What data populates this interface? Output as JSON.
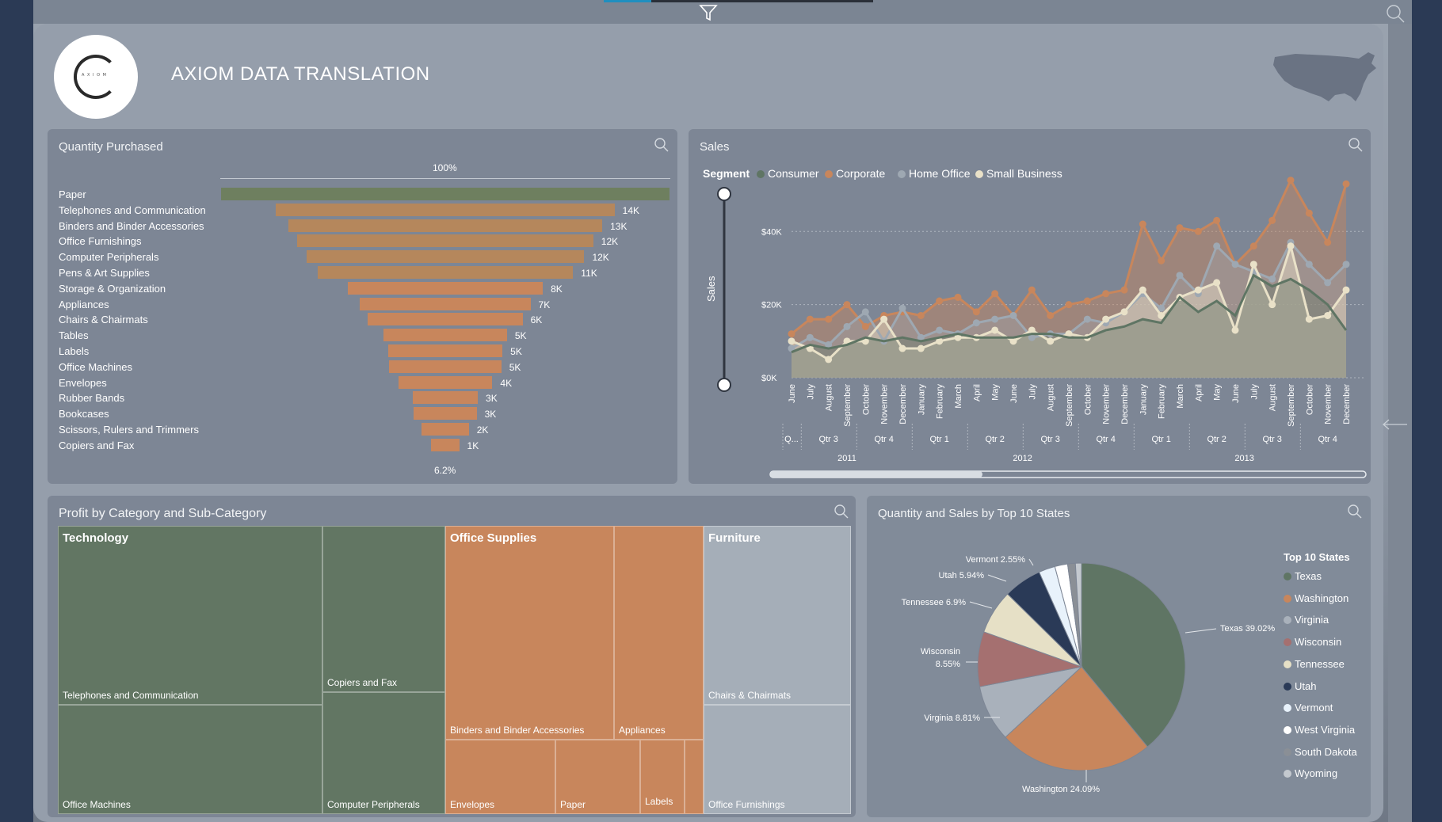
{
  "app": {
    "title": "AXIOM DATA TRANSLATION",
    "logo_text": "A X I O M"
  },
  "colors": {
    "consumer": "#5f7564",
    "corporate": "#c8865c",
    "home_office": "#9ea8b2",
    "small_business": "#e9e1c8",
    "paper_bar": "#6e7f5f"
  },
  "icons": [
    "filter-icon",
    "search-icon",
    "usa-map-icon",
    "back-arrow-icon"
  ],
  "quantity_card": {
    "title": "Quantity Purchased",
    "top_pct": "100%",
    "bottom_pct": "6.2%",
    "rows": [
      {
        "label": "Paper",
        "value": "",
        "frac": 1.0
      },
      {
        "label": "Telephones and Communication",
        "value": "14K",
        "frac": 0.755
      },
      {
        "label": "Binders and Binder Accessories",
        "value": "13K",
        "frac": 0.7
      },
      {
        "label": "Office Furnishings",
        "value": "12K",
        "frac": 0.66
      },
      {
        "label": "Computer Peripherals",
        "value": "12K",
        "frac": 0.62
      },
      {
        "label": "Pens & Art Supplies",
        "value": "11K",
        "frac": 0.57
      },
      {
        "label": "Storage & Organization",
        "value": "8K",
        "frac": 0.435
      },
      {
        "label": "Appliances",
        "value": "7K",
        "frac": 0.38
      },
      {
        "label": "Chairs & Chairmats",
        "value": "6K",
        "frac": 0.345
      },
      {
        "label": "Tables",
        "value": "5K",
        "frac": 0.275
      },
      {
        "label": "Labels",
        "value": "5K",
        "frac": 0.255
      },
      {
        "label": "Office Machines",
        "value": "5K",
        "frac": 0.25
      },
      {
        "label": "Envelopes",
        "value": "4K",
        "frac": 0.21
      },
      {
        "label": "Rubber Bands",
        "value": "3K",
        "frac": 0.145
      },
      {
        "label": "Bookcases",
        "value": "3K",
        "frac": 0.14
      },
      {
        "label": "Scissors, Rulers and Trimmers",
        "value": "2K",
        "frac": 0.105
      },
      {
        "label": "Copiers and Fax",
        "value": "1K",
        "frac": 0.062
      }
    ]
  },
  "sales_card": {
    "title": "Sales",
    "legend_title": "Segment",
    "legend": [
      "Consumer",
      "Corporate",
      "Home Office",
      "Small Business"
    ],
    "ylabel": "Sales"
  },
  "chart_data": {
    "type": "area",
    "title": "Sales",
    "ylabel": "Sales",
    "yticks": [
      "$0K",
      "$20K",
      "$40K"
    ],
    "ylim": [
      0,
      55000
    ],
    "x": [
      "June",
      "July",
      "August",
      "September",
      "October",
      "November",
      "December",
      "January",
      "February",
      "March",
      "April",
      "May",
      "June",
      "July",
      "August",
      "September",
      "October",
      "November",
      "December",
      "January",
      "February",
      "March",
      "April",
      "May",
      "June",
      "July",
      "August",
      "September",
      "October",
      "November",
      "December"
    ],
    "quarters": [
      "Q...",
      "Qtr 3",
      "Qtr 4",
      "Qtr 1",
      "Qtr 2",
      "Qtr 3",
      "Qtr 4",
      "Qtr 1",
      "Qtr 2",
      "Qtr 3",
      "Qtr 4"
    ],
    "years": [
      "2011",
      "2012",
      "2013"
    ],
    "series": [
      {
        "name": "Corporate",
        "values": [
          12000,
          16000,
          16000,
          20000,
          14000,
          17000,
          18000,
          17000,
          21000,
          22000,
          18000,
          23000,
          17000,
          24000,
          17000,
          20000,
          21000,
          23000,
          24000,
          42000,
          32000,
          41000,
          40000,
          43000,
          31000,
          36000,
          43000,
          54000,
          45000,
          37000,
          53000
        ]
      },
      {
        "name": "Home Office",
        "values": [
          8000,
          11000,
          9000,
          14000,
          18000,
          10000,
          19000,
          11000,
          13000,
          12000,
          15000,
          16000,
          17000,
          11000,
          12000,
          12000,
          16000,
          15000,
          18000,
          23000,
          19000,
          28000,
          23000,
          36000,
          31000,
          29000,
          27000,
          37000,
          31000,
          26000,
          31000
        ]
      },
      {
        "name": "Small Business",
        "values": [
          10000,
          8000,
          5000,
          10000,
          10000,
          16000,
          8000,
          8000,
          10000,
          11000,
          11000,
          13000,
          10000,
          13000,
          10000,
          12000,
          11000,
          16000,
          18000,
          24000,
          17000,
          22000,
          24000,
          26000,
          13000,
          31000,
          20000,
          36000,
          16000,
          17000,
          24000
        ]
      },
      {
        "name": "Consumer",
        "values": [
          7000,
          9000,
          8000,
          9000,
          11000,
          10000,
          11000,
          10000,
          11000,
          12000,
          11000,
          11000,
          11000,
          12000,
          12000,
          11000,
          11000,
          13000,
          14000,
          16000,
          15000,
          22000,
          18000,
          21000,
          17000,
          28000,
          25000,
          27000,
          24000,
          20000,
          13000
        ]
      }
    ]
  },
  "profit_card": {
    "title": "Profit by Category and Sub-Category",
    "categories": [
      "Technology",
      "Office Supplies",
      "Furniture"
    ],
    "cells": [
      "Telephones and Communication",
      "Office Machines",
      "Copiers and Fax",
      "Computer Peripherals",
      "Binders and Binder Accessories",
      "Appliances",
      "Envelopes",
      "Paper",
      "Labels",
      "Chairs & Chairmats",
      "Office Furnishings"
    ]
  },
  "states_card": {
    "title": "Quantity and Sales by Top 10 States",
    "legend_title": "Top 10 States",
    "states": [
      {
        "name": "Texas",
        "color": "#5f7564",
        "pct": 39.02,
        "label": "Texas 39.02%"
      },
      {
        "name": "Washington",
        "color": "#c8865c",
        "pct": 24.09,
        "label": "Washington 24.09%"
      },
      {
        "name": "Virginia",
        "color": "#a9b1bb",
        "pct": 8.81,
        "label": "Virginia 8.81%"
      },
      {
        "name": "Wisconsin",
        "color": "#a57070",
        "pct": 8.55,
        "label": "Wisconsin 8.55%"
      },
      {
        "name": "Tennessee",
        "color": "#e6e0c6",
        "pct": 6.9,
        "label": "Tennessee 6.9%"
      },
      {
        "name": "Utah",
        "color": "#2a3a57",
        "pct": 5.94,
        "label": "Utah 5.94%"
      },
      {
        "name": "Vermont",
        "color": "#e8f2fb",
        "pct": 2.55,
        "label": "Vermont 2.55%"
      },
      {
        "name": "West Virginia",
        "color": "#ffffff",
        "pct": 2.0,
        "label": ""
      },
      {
        "name": "South Dakota",
        "color": "#8a8f96",
        "pct": 1.2,
        "label": ""
      },
      {
        "name": "Wyoming",
        "color": "#c4c9cf",
        "pct": 0.94,
        "label": ""
      }
    ],
    "pie_labels": {
      "texas": "Texas 39.02%",
      "washington": "Washington 24.09%",
      "virginia": "Virginia 8.81%",
      "wisconsin_1": "Wisconsin",
      "wisconsin_2": "8.55%",
      "tennessee": "Tennessee 6.9%",
      "utah": "Utah 5.94%",
      "vermont": "Vermont 2.55%"
    }
  }
}
